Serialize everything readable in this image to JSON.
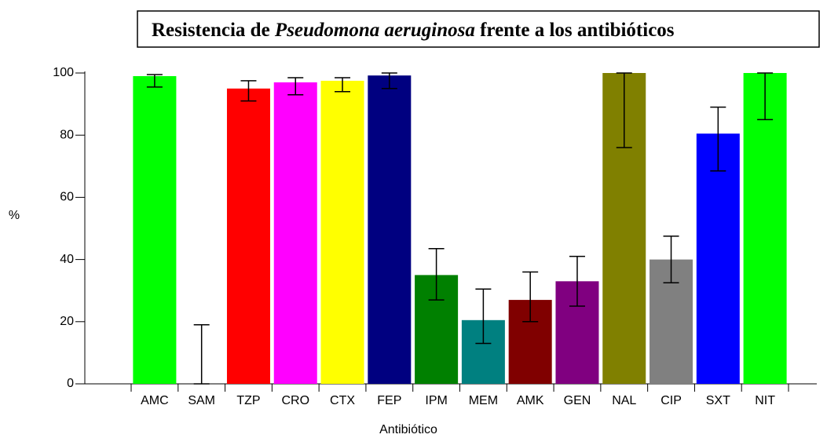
{
  "chart_data": {
    "type": "bar",
    "title": [
      {
        "text": "Resistencia de ",
        "italic": false
      },
      {
        "text": "Pseudomona aeruginosa",
        "italic": true
      },
      {
        "text": " frente a los antibióticos",
        "italic": false
      }
    ],
    "xlabel": "Antibiótico",
    "ylabel": "%",
    "categories": [
      "AMC",
      "SAM",
      "TZP",
      "CRO",
      "CTX",
      "FEP",
      "IPM",
      "MEM",
      "AMK",
      "GEN",
      "NAL",
      "CIP",
      "SXT",
      "NIT"
    ],
    "values": [
      99,
      0,
      95,
      97,
      97.5,
      99.2,
      35,
      20.5,
      27,
      33,
      100,
      40,
      80.5,
      100
    ],
    "ci_low": [
      95.5,
      0,
      91,
      93,
      94,
      95,
      27,
      13,
      20,
      25,
      76,
      32.5,
      68.5,
      85
    ],
    "ci_high": [
      99.5,
      19,
      97.5,
      98.5,
      98.5,
      100,
      43.5,
      30.5,
      36,
      41,
      100,
      47.5,
      89,
      100
    ],
    "colors": [
      "#00ff00",
      "#ffffff",
      "#ff0000",
      "#ff00ff",
      "#ffff00",
      "#000080",
      "#008000",
      "#008080",
      "#800000",
      "#800080",
      "#808000",
      "#808080",
      "#0000ff",
      "#00ff00"
    ],
    "ylim": [
      0,
      100
    ],
    "yticks": [
      0,
      20,
      40,
      60,
      80,
      100
    ]
  }
}
